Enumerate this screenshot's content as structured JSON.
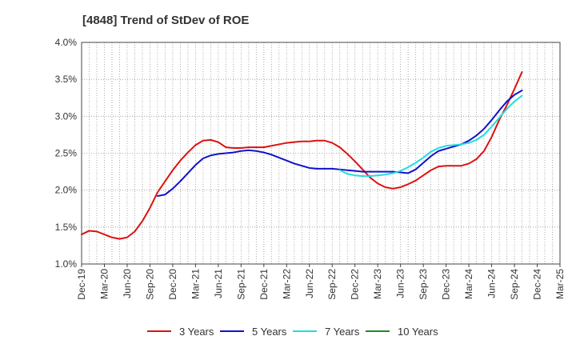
{
  "chart_data": {
    "type": "line",
    "title": "[4848]  Trend of StDev of ROE",
    "xlabel": "",
    "ylabel": "",
    "ylim": [
      1.0,
      4.0
    ],
    "y_ticks": [
      1.0,
      1.5,
      2.0,
      2.5,
      3.0,
      3.5,
      4.0
    ],
    "y_tick_labels": [
      "1.0%",
      "1.5%",
      "2.0%",
      "2.5%",
      "3.0%",
      "3.5%",
      "4.0%"
    ],
    "x_tick_labels": [
      "Dec-19",
      "Mar-20",
      "Jun-20",
      "Sep-20",
      "Dec-20",
      "Mar-21",
      "Jun-21",
      "Sep-21",
      "Dec-21",
      "Mar-22",
      "Jun-22",
      "Sep-22",
      "Dec-22",
      "Mar-23",
      "Jun-23",
      "Sep-23",
      "Dec-23",
      "Mar-24",
      "Jun-24",
      "Sep-24",
      "Dec-24",
      "Mar-25"
    ],
    "grid": true,
    "legend_position": "bottom",
    "series": [
      {
        "name": "3 Years",
        "color": "#dd1111",
        "points": [
          [
            0,
            1.4
          ],
          [
            1,
            1.45
          ],
          [
            2,
            1.44
          ],
          [
            3,
            1.4
          ],
          [
            4,
            1.36
          ],
          [
            5,
            1.34
          ],
          [
            6,
            1.36
          ],
          [
            7,
            1.44
          ],
          [
            8,
            1.58
          ],
          [
            9,
            1.76
          ],
          [
            10,
            1.97
          ],
          [
            11,
            2.12
          ],
          [
            12,
            2.27
          ],
          [
            13,
            2.4
          ],
          [
            14,
            2.51
          ],
          [
            15,
            2.61
          ],
          [
            16,
            2.67
          ],
          [
            17,
            2.68
          ],
          [
            18,
            2.65
          ],
          [
            19,
            2.58
          ],
          [
            20,
            2.57
          ],
          [
            21,
            2.57
          ],
          [
            22,
            2.58
          ],
          [
            23,
            2.58
          ],
          [
            24,
            2.58
          ],
          [
            25,
            2.6
          ],
          [
            26,
            2.62
          ],
          [
            27,
            2.64
          ],
          [
            28,
            2.65
          ],
          [
            29,
            2.66
          ],
          [
            30,
            2.66
          ],
          [
            31,
            2.67
          ],
          [
            32,
            2.67
          ],
          [
            33,
            2.64
          ],
          [
            34,
            2.58
          ],
          [
            35,
            2.49
          ],
          [
            36,
            2.39
          ],
          [
            37,
            2.28
          ],
          [
            38,
            2.17
          ],
          [
            39,
            2.09
          ],
          [
            40,
            2.04
          ],
          [
            41,
            2.02
          ],
          [
            42,
            2.04
          ],
          [
            43,
            2.08
          ],
          [
            44,
            2.13
          ],
          [
            45,
            2.2
          ],
          [
            46,
            2.27
          ],
          [
            47,
            2.32
          ],
          [
            48,
            2.33
          ],
          [
            49,
            2.33
          ],
          [
            50,
            2.33
          ],
          [
            51,
            2.36
          ],
          [
            52,
            2.42
          ],
          [
            53,
            2.53
          ],
          [
            54,
            2.72
          ],
          [
            55,
            2.95
          ],
          [
            56,
            3.15
          ],
          [
            57,
            3.37
          ],
          [
            58,
            3.6
          ]
        ]
      },
      {
        "name": "5 Years",
        "color": "#1111cc",
        "points": [
          [
            10,
            1.92
          ],
          [
            11,
            1.94
          ],
          [
            12,
            2.02
          ],
          [
            13,
            2.12
          ],
          [
            14,
            2.23
          ],
          [
            15,
            2.34
          ],
          [
            16,
            2.43
          ],
          [
            17,
            2.47
          ],
          [
            18,
            2.49
          ],
          [
            19,
            2.5
          ],
          [
            20,
            2.51
          ],
          [
            21,
            2.53
          ],
          [
            22,
            2.54
          ],
          [
            23,
            2.53
          ],
          [
            24,
            2.51
          ],
          [
            25,
            2.48
          ],
          [
            26,
            2.44
          ],
          [
            27,
            2.4
          ],
          [
            28,
            2.36
          ],
          [
            29,
            2.33
          ],
          [
            30,
            2.3
          ],
          [
            31,
            2.29
          ],
          [
            32,
            2.29
          ],
          [
            33,
            2.29
          ],
          [
            34,
            2.28
          ],
          [
            35,
            2.27
          ],
          [
            36,
            2.26
          ],
          [
            37,
            2.25
          ],
          [
            38,
            2.25
          ],
          [
            39,
            2.25
          ],
          [
            40,
            2.25
          ],
          [
            41,
            2.25
          ],
          [
            42,
            2.24
          ],
          [
            43,
            2.23
          ],
          [
            44,
            2.28
          ],
          [
            45,
            2.37
          ],
          [
            46,
            2.46
          ],
          [
            47,
            2.53
          ],
          [
            48,
            2.56
          ],
          [
            49,
            2.59
          ],
          [
            50,
            2.62
          ],
          [
            51,
            2.67
          ],
          [
            52,
            2.74
          ],
          [
            53,
            2.83
          ],
          [
            54,
            2.95
          ],
          [
            55,
            3.08
          ],
          [
            56,
            3.2
          ],
          [
            57,
            3.29
          ],
          [
            58,
            3.35
          ]
        ]
      },
      {
        "name": "7 Years",
        "color": "#22dddd",
        "points": [
          [
            34,
            2.27
          ],
          [
            35,
            2.22
          ],
          [
            36,
            2.2
          ],
          [
            37,
            2.19
          ],
          [
            38,
            2.19
          ],
          [
            39,
            2.2
          ],
          [
            40,
            2.21
          ],
          [
            41,
            2.23
          ],
          [
            42,
            2.26
          ],
          [
            43,
            2.31
          ],
          [
            44,
            2.37
          ],
          [
            45,
            2.44
          ],
          [
            46,
            2.52
          ],
          [
            47,
            2.57
          ],
          [
            48,
            2.6
          ],
          [
            49,
            2.61
          ],
          [
            50,
            2.62
          ],
          [
            51,
            2.64
          ],
          [
            52,
            2.68
          ],
          [
            53,
            2.75
          ],
          [
            54,
            2.86
          ],
          [
            55,
            2.98
          ],
          [
            56,
            3.1
          ],
          [
            57,
            3.2
          ],
          [
            58,
            3.28
          ]
        ]
      },
      {
        "name": "10 Years",
        "color": "#228822",
        "points": []
      }
    ]
  }
}
